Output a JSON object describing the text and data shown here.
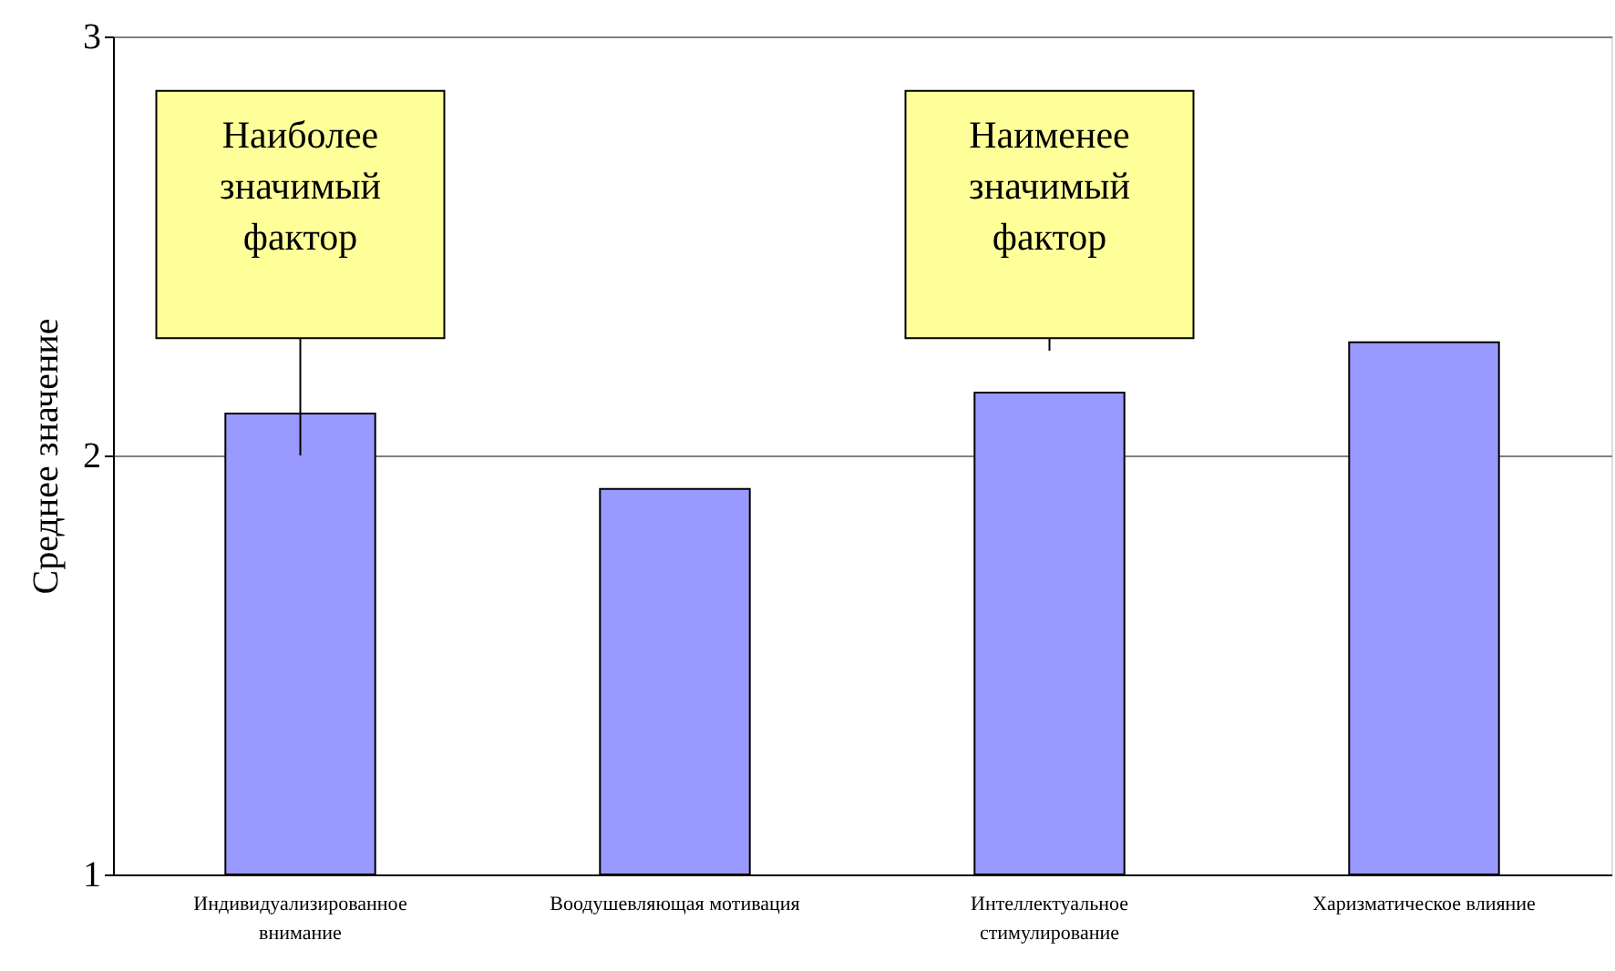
{
  "chart_data": {
    "type": "bar",
    "ylabel": "Среднее значение",
    "categories": [
      "Индивидуализированное внимание",
      "Воодушевляющая мотивация",
      "Интеллектуальное стимулирование",
      "Харизматическое влияние"
    ],
    "values": [
      2.1,
      1.92,
      2.15,
      2.27
    ],
    "color": "#9999ff",
    "ylim": [
      1,
      3
    ],
    "yticks": [
      1,
      2,
      3
    ],
    "grid": "y",
    "annotations": [
      "Наиболее значимый фактор",
      "Наименее значимый фактор"
    ]
  }
}
